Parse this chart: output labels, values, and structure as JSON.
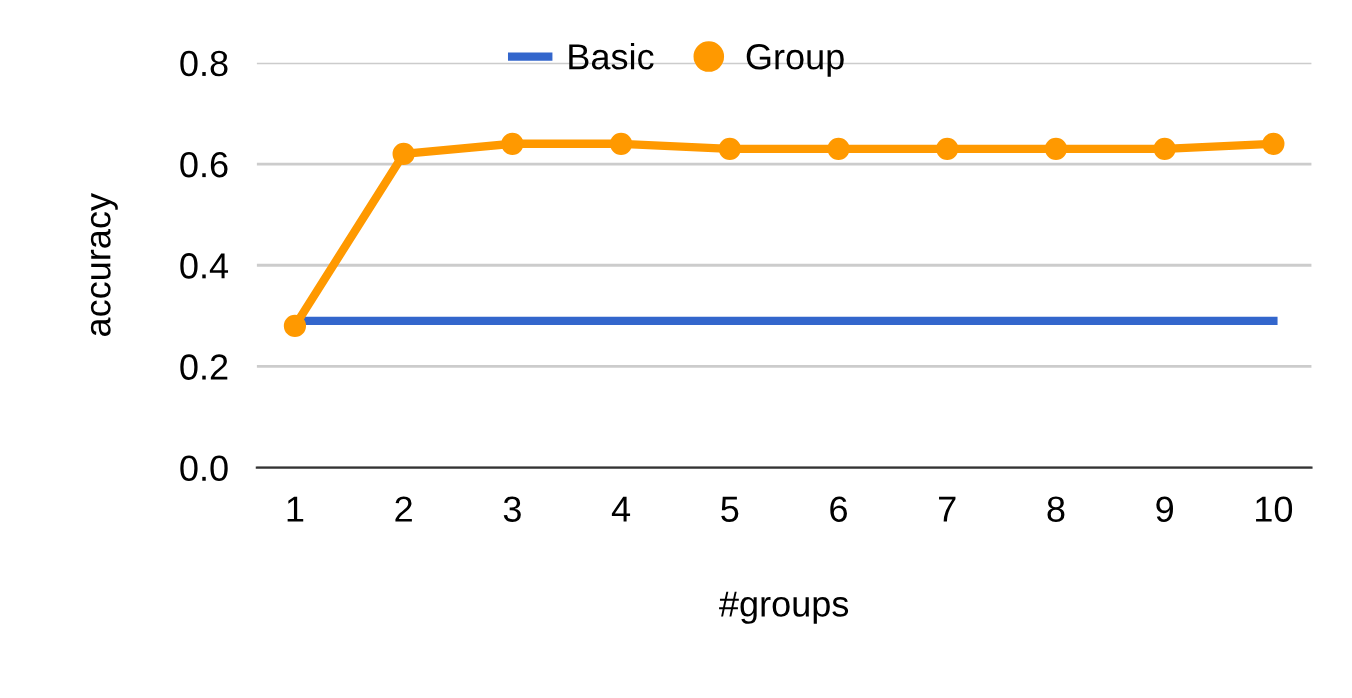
{
  "chart_data": {
    "type": "line",
    "xlabel": "#groups",
    "ylabel": "accuracy",
    "categories": [
      "1",
      "2",
      "3",
      "4",
      "5",
      "6",
      "7",
      "8",
      "9",
      "10"
    ],
    "series": [
      {
        "name": "Basic",
        "color": "#3366cc",
        "marker": "none",
        "values": [
          0.29,
          0.29,
          0.29,
          0.29,
          0.29,
          0.29,
          0.29,
          0.29,
          0.29,
          0.29
        ]
      },
      {
        "name": "Group",
        "color": "#ff9900",
        "marker": "circle",
        "values": [
          0.28,
          0.62,
          0.64,
          0.64,
          0.63,
          0.63,
          0.63,
          0.63,
          0.63,
          0.64
        ]
      }
    ],
    "ylim": [
      0,
      0.8
    ],
    "yticks": [
      {
        "value": 0,
        "label": "0.0"
      },
      {
        "value": 0.2,
        "label": "0.2"
      },
      {
        "value": 0.4,
        "label": "0.4"
      },
      {
        "value": 0.6,
        "label": "0.6"
      },
      {
        "value": 0.8,
        "label": "0.8"
      }
    ],
    "grid": "y",
    "legend": "top",
    "line_style": "solid"
  }
}
